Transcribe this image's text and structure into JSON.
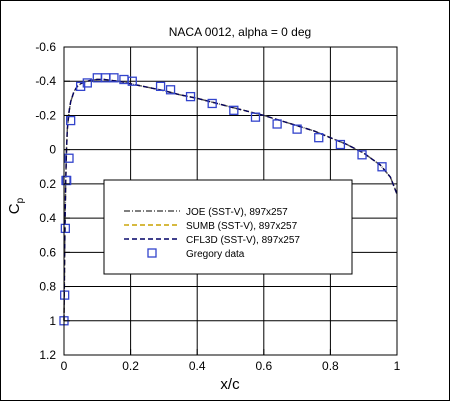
{
  "chart_data": {
    "type": "line",
    "title": "NACA 0012, alpha = 0 deg",
    "xlabel": "x/c",
    "ylabel": "C",
    "ylabel_sub": "p",
    "xlim": [
      0,
      1
    ],
    "ylim": [
      1.2,
      -0.6
    ],
    "y_inverted": true,
    "grid": true,
    "x_ticks": [
      {
        "value": 0,
        "label": "0"
      },
      {
        "value": 0.2,
        "label": "0.2"
      },
      {
        "value": 0.4,
        "label": "0.4"
      },
      {
        "value": 0.6,
        "label": "0.6"
      },
      {
        "value": 0.8,
        "label": "0.8"
      },
      {
        "value": 1,
        "label": "1"
      }
    ],
    "y_ticks": [
      {
        "value": -0.6,
        "label": "-0.6"
      },
      {
        "value": -0.4,
        "label": "-0.4"
      },
      {
        "value": -0.2,
        "label": "-0.2"
      },
      {
        "value": 0,
        "label": "0"
      },
      {
        "value": 0.2,
        "label": "0.2"
      },
      {
        "value": 0.4,
        "label": "0.4"
      },
      {
        "value": 0.6,
        "label": "0.6"
      },
      {
        "value": 0.8,
        "label": "0.8"
      },
      {
        "value": 1,
        "label": "1"
      },
      {
        "value": 1.2,
        "label": "1.2"
      }
    ],
    "legend_placement": "center",
    "series": [
      {
        "name": "JOE (SST-V), 897x257",
        "style": "dash-dot",
        "color": "#555555",
        "x": [
          0,
          0.0005,
          0.001,
          0.002,
          0.003,
          0.005,
          0.0075,
          0.01,
          0.015,
          0.02,
          0.03,
          0.04,
          0.05,
          0.06,
          0.08,
          0.1,
          0.12,
          0.14,
          0.16,
          0.18,
          0.2,
          0.25,
          0.3,
          0.35,
          0.4,
          0.45,
          0.5,
          0.55,
          0.6,
          0.65,
          0.7,
          0.75,
          0.8,
          0.85,
          0.9,
          0.95,
          0.98,
          1.0
        ],
        "y": [
          1.0,
          0.9,
          0.8,
          0.6,
          0.45,
          0.2,
          0.0,
          -0.12,
          -0.22,
          -0.28,
          -0.34,
          -0.37,
          -0.385,
          -0.395,
          -0.405,
          -0.41,
          -0.41,
          -0.405,
          -0.4,
          -0.395,
          -0.385,
          -0.365,
          -0.345,
          -0.32,
          -0.3,
          -0.275,
          -0.25,
          -0.225,
          -0.2,
          -0.17,
          -0.14,
          -0.11,
          -0.07,
          -0.03,
          0.02,
          0.09,
          0.16,
          0.26
        ]
      },
      {
        "name": "SUMB (SST-V), 897x257",
        "style": "dashed",
        "color": "#c9a200",
        "x": [
          0,
          0.0005,
          0.001,
          0.002,
          0.003,
          0.005,
          0.0075,
          0.01,
          0.015,
          0.02,
          0.03,
          0.04,
          0.05,
          0.06,
          0.08,
          0.1,
          0.12,
          0.14,
          0.16,
          0.18,
          0.2,
          0.25,
          0.3,
          0.35,
          0.4,
          0.45,
          0.5,
          0.55,
          0.6,
          0.65,
          0.7,
          0.75,
          0.8,
          0.85,
          0.9,
          0.95,
          0.98,
          1.0
        ],
        "y": [
          1.0,
          0.9,
          0.8,
          0.6,
          0.45,
          0.2,
          0.0,
          -0.12,
          -0.22,
          -0.28,
          -0.34,
          -0.37,
          -0.385,
          -0.395,
          -0.405,
          -0.41,
          -0.41,
          -0.405,
          -0.4,
          -0.395,
          -0.385,
          -0.365,
          -0.345,
          -0.32,
          -0.3,
          -0.275,
          -0.25,
          -0.225,
          -0.2,
          -0.17,
          -0.14,
          -0.11,
          -0.07,
          -0.03,
          0.02,
          0.09,
          0.16,
          0.26
        ]
      },
      {
        "name": "CFL3D (SST-V), 897x257",
        "style": "dashed",
        "color": "#000066",
        "x": [
          0,
          0.0005,
          0.001,
          0.002,
          0.003,
          0.005,
          0.0075,
          0.01,
          0.015,
          0.02,
          0.03,
          0.04,
          0.05,
          0.06,
          0.08,
          0.1,
          0.12,
          0.14,
          0.16,
          0.18,
          0.2,
          0.25,
          0.3,
          0.35,
          0.4,
          0.45,
          0.5,
          0.55,
          0.6,
          0.65,
          0.7,
          0.75,
          0.8,
          0.85,
          0.9,
          0.95,
          0.98,
          1.0
        ],
        "y": [
          1.0,
          0.9,
          0.8,
          0.6,
          0.45,
          0.2,
          0.0,
          -0.12,
          -0.22,
          -0.28,
          -0.34,
          -0.37,
          -0.385,
          -0.395,
          -0.405,
          -0.41,
          -0.41,
          -0.405,
          -0.4,
          -0.395,
          -0.385,
          -0.365,
          -0.345,
          -0.32,
          -0.3,
          -0.275,
          -0.25,
          -0.225,
          -0.2,
          -0.17,
          -0.14,
          -0.11,
          -0.07,
          -0.03,
          0.02,
          0.09,
          0.16,
          0.26
        ]
      },
      {
        "name": "Gregory data",
        "style": "markers",
        "marker": "square",
        "color": "#3344cc",
        "x": [
          0.0,
          0.002,
          0.004,
          0.006,
          0.008,
          0.015,
          0.02,
          0.05,
          0.07,
          0.1,
          0.125,
          0.15,
          0.18,
          0.205,
          0.29,
          0.32,
          0.38,
          0.445,
          0.51,
          0.575,
          0.64,
          0.7,
          0.765,
          0.83,
          0.895,
          0.955
        ],
        "y": [
          1.0,
          0.85,
          0.46,
          0.18,
          0.18,
          0.05,
          -0.17,
          -0.37,
          -0.39,
          -0.42,
          -0.42,
          -0.42,
          -0.41,
          -0.4,
          -0.37,
          -0.35,
          -0.31,
          -0.27,
          -0.23,
          -0.19,
          -0.15,
          -0.12,
          -0.07,
          -0.03,
          0.03,
          0.1
        ]
      }
    ]
  }
}
